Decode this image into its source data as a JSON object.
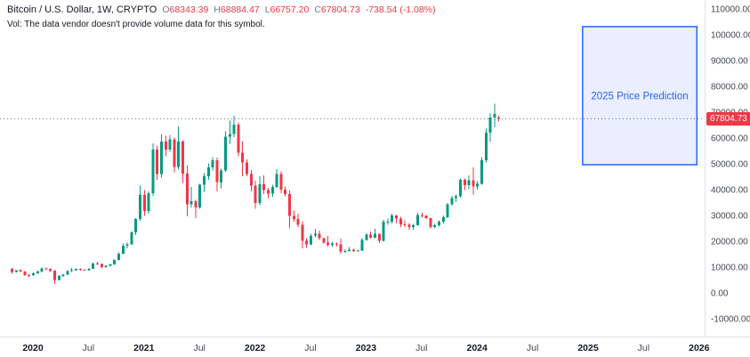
{
  "header": {
    "symbol_title": "Bitcoin / U.S. Dollar, 1W, CRYPTO",
    "ohlc": {
      "open_label": "O",
      "open_value": "68343.39",
      "high_label": "H",
      "high_value": "68884.47",
      "low_label": "L",
      "low_value": "66757.20",
      "close_label": "C",
      "close_value": "67804.73",
      "change_value": "-738.54 (-1.08%)"
    },
    "volume_note": "Vol: The data vendor doesn't provide volume data for this symbol."
  },
  "prediction_box": {
    "label": "2025 Price Prediction",
    "x_start_year": 2024.95,
    "x_end_year": 2025.98,
    "price_top": 103500,
    "price_bottom": 50000,
    "border_color": "#2962ff",
    "fill_color": "rgba(41,98,255,0.10)",
    "label_color": "#2962ff"
  },
  "price_axis": {
    "ticks": [
      "110000.00",
      "100000.00",
      "90000.00",
      "80000.00",
      "70000.00",
      "60000.00",
      "50000.00",
      "40000.00",
      "30000.00",
      "20000.00",
      "10000.00",
      "0.00",
      "-10000.00"
    ],
    "last_price": "67804.73",
    "last_price_color": "#f23645"
  },
  "time_axis": {
    "labels": [
      "2020",
      "Jul",
      "2021",
      "Jul",
      "2022",
      "Jul",
      "2023",
      "Jul",
      "2024",
      "Jul",
      "2025",
      "Jul",
      "2026"
    ]
  },
  "chart_data": {
    "type": "candlestick",
    "title": "Bitcoin / U.S. Dollar weekly candlestick chart with 2025 price prediction box",
    "symbol": "Bitcoin / U.S. Dollar",
    "timeframe": "1W",
    "exchange": "CRYPTO",
    "up_color": "#089981",
    "down_color": "#f23645",
    "y_axis_range": [
      -10000,
      110000
    ],
    "x_axis_years": [
      2020,
      2026
    ],
    "candles_start_year": 2019.808,
    "candles_per_year": 26,
    "candles_ohlc": [
      [
        9600,
        10000,
        7800,
        8500
      ],
      [
        8500,
        9200,
        8300,
        9100
      ],
      [
        9100,
        9400,
        8400,
        8700
      ],
      [
        8700,
        8800,
        6900,
        7300
      ],
      [
        7300,
        7700,
        6500,
        7200
      ],
      [
        7200,
        8200,
        6900,
        8000
      ],
      [
        8000,
        9000,
        7800,
        8600
      ],
      [
        8600,
        10250,
        8300,
        9900
      ],
      [
        9900,
        10100,
        9300,
        9700
      ],
      [
        9700,
        9900,
        8500,
        8900
      ],
      [
        8900,
        9200,
        3850,
        5300
      ],
      [
        5300,
        7300,
        5100,
        6900
      ],
      [
        6900,
        7700,
        6600,
        7500
      ],
      [
        7500,
        9100,
        7300,
        8800
      ],
      [
        8800,
        10000,
        8500,
        9200
      ],
      [
        9200,
        9900,
        8900,
        9600
      ],
      [
        9600,
        9800,
        8900,
        9300
      ],
      [
        9300,
        9500,
        9000,
        9200
      ],
      [
        9200,
        10000,
        9000,
        9700
      ],
      [
        9700,
        12100,
        9600,
        11700
      ],
      [
        11700,
        12400,
        11200,
        11600
      ],
      [
        11600,
        11700,
        9900,
        10300
      ],
      [
        10300,
        11100,
        10100,
        10900
      ],
      [
        10900,
        11700,
        10500,
        11400
      ],
      [
        11400,
        13350,
        11200,
        13100
      ],
      [
        13100,
        16000,
        12900,
        15500
      ],
      [
        15500,
        19500,
        15300,
        18600
      ],
      [
        18600,
        19900,
        17600,
        19200
      ],
      [
        19200,
        24300,
        18900,
        23800
      ],
      [
        23800,
        29300,
        22800,
        28900
      ],
      [
        28900,
        41900,
        28200,
        38200
      ],
      [
        38200,
        40100,
        30200,
        32100
      ],
      [
        32100,
        39700,
        31000,
        38900
      ],
      [
        38900,
        58300,
        38000,
        55900
      ],
      [
        55900,
        57500,
        44200,
        46300
      ],
      [
        46300,
        61800,
        45000,
        59000
      ],
      [
        59000,
        61200,
        53300,
        55800
      ],
      [
        55800,
        61500,
        55000,
        59900
      ],
      [
        59900,
        60500,
        47100,
        49100
      ],
      [
        49100,
        64800,
        48100,
        58900
      ],
      [
        58900,
        59500,
        42900,
        46500
      ],
      [
        46500,
        49800,
        30000,
        34700
      ],
      [
        34700,
        41300,
        33400,
        35800
      ],
      [
        35800,
        36400,
        29300,
        33500
      ],
      [
        33500,
        42600,
        33000,
        42200
      ],
      [
        42200,
        46700,
        39500,
        45600
      ],
      [
        45600,
        50500,
        44200,
        48900
      ],
      [
        48900,
        52900,
        47800,
        51800
      ],
      [
        51800,
        52700,
        39600,
        43200
      ],
      [
        43200,
        48500,
        40800,
        47700
      ],
      [
        47700,
        62900,
        47200,
        60900
      ],
      [
        60900,
        67000,
        58100,
        61900
      ],
      [
        61900,
        69000,
        60700,
        65500
      ],
      [
        65500,
        66300,
        53300,
        54700
      ],
      [
        54700,
        59100,
        45600,
        50800
      ],
      [
        50800,
        52100,
        45500,
        46300
      ],
      [
        46300,
        48000,
        39600,
        41900
      ],
      [
        41900,
        43800,
        33000,
        35100
      ],
      [
        35100,
        45500,
        34300,
        42400
      ],
      [
        42400,
        45800,
        38600,
        40100
      ],
      [
        40100,
        41000,
        37000,
        38800
      ],
      [
        38800,
        42300,
        37600,
        41300
      ],
      [
        41300,
        48200,
        40800,
        46300
      ],
      [
        46300,
        47400,
        39000,
        40400
      ],
      [
        40400,
        41600,
        37700,
        38600
      ],
      [
        38600,
        40000,
        25300,
        30100
      ],
      [
        30100,
        32200,
        28000,
        29000
      ],
      [
        29000,
        31000,
        25900,
        26700
      ],
      [
        26700,
        28100,
        17600,
        20500
      ],
      [
        20500,
        21600,
        17700,
        19200
      ],
      [
        19200,
        23300,
        18800,
        22500
      ],
      [
        22500,
        25200,
        21900,
        23200
      ],
      [
        23200,
        24400,
        20800,
        21500
      ],
      [
        21500,
        21800,
        19500,
        19800
      ],
      [
        19800,
        22500,
        18200,
        18900
      ],
      [
        18900,
        20200,
        18100,
        19500
      ],
      [
        19500,
        19900,
        18200,
        19200
      ],
      [
        19200,
        21300,
        15500,
        16300
      ],
      [
        16300,
        17200,
        15800,
        16500
      ],
      [
        16500,
        18100,
        16300,
        17100
      ],
      [
        17100,
        17400,
        16200,
        16500
      ],
      [
        16500,
        17000,
        16300,
        16700
      ],
      [
        16700,
        21600,
        16600,
        20900
      ],
      [
        20900,
        23400,
        20500,
        23000
      ],
      [
        23000,
        24200,
        21400,
        21800
      ],
      [
        21800,
        25200,
        21500,
        23200
      ],
      [
        23200,
        23300,
        19600,
        20500
      ],
      [
        20500,
        28600,
        20200,
        28000
      ],
      [
        28000,
        29100,
        26700,
        28000
      ],
      [
        28000,
        31000,
        27300,
        30300
      ],
      [
        30300,
        30600,
        27200,
        29200
      ],
      [
        29200,
        29900,
        25900,
        26900
      ],
      [
        26900,
        28400,
        25800,
        26700
      ],
      [
        26700,
        27400,
        24800,
        25800
      ],
      [
        25800,
        27000,
        24900,
        26500
      ],
      [
        26500,
        31400,
        26300,
        30500
      ],
      [
        30500,
        31300,
        29500,
        30300
      ],
      [
        30300,
        30400,
        28900,
        29300
      ],
      [
        29300,
        29400,
        25400,
        25900
      ],
      [
        25900,
        27100,
        25600,
        26500
      ],
      [
        26500,
        28500,
        26100,
        28000
      ],
      [
        28000,
        30300,
        27200,
        29700
      ],
      [
        29700,
        35200,
        29300,
        34600
      ],
      [
        34600,
        37900,
        34100,
        37100
      ],
      [
        37100,
        38400,
        35600,
        37700
      ],
      [
        37700,
        44700,
        37200,
        44200
      ],
      [
        44200,
        44600,
        40200,
        42100
      ],
      [
        42100,
        45900,
        40500,
        43900
      ],
      [
        43900,
        48900,
        38500,
        41600
      ],
      [
        41600,
        43600,
        40300,
        42600
      ],
      [
        42600,
        52900,
        42200,
        51700
      ],
      [
        51700,
        64000,
        50900,
        62400
      ],
      [
        62400,
        69900,
        59000,
        68300
      ],
      [
        68300,
        73700,
        64500,
        69600
      ],
      [
        68343.39,
        68884.47,
        66757.2,
        67804.73
      ]
    ]
  }
}
